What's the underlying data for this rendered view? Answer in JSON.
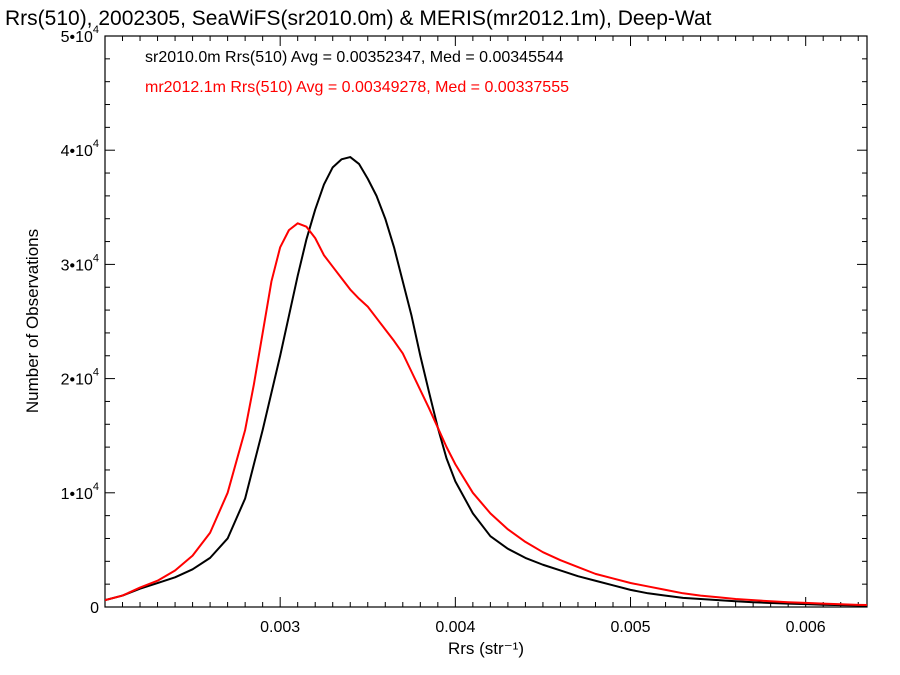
{
  "chart_data": {
    "type": "line",
    "title": "Rrs(510), 2002305, SeaWiFS(sr2010.0m) & MERIS(mr2012.1m), Deep-Wat",
    "xlabel": "Rrs (str⁻¹)",
    "ylabel": "Number of Observations",
    "xlim": [
      0.002,
      0.00635
    ],
    "ylim": [
      0,
      50000
    ],
    "grid": false,
    "legend_position": "top-left",
    "x_ticks": [
      {
        "value": 0.003,
        "label": "0.003"
      },
      {
        "value": 0.004,
        "label": "0.004"
      },
      {
        "value": 0.005,
        "label": "0.005"
      },
      {
        "value": 0.006,
        "label": "0.006"
      }
    ],
    "y_ticks": [
      {
        "value": 0,
        "label": "0"
      },
      {
        "value": 10000,
        "base": "1•10",
        "exp": "4"
      },
      {
        "value": 20000,
        "base": "2•10",
        "exp": "4"
      },
      {
        "value": 30000,
        "base": "3•10",
        "exp": "4"
      },
      {
        "value": 40000,
        "base": "4•10",
        "exp": "4"
      },
      {
        "value": 50000,
        "base": "5•10",
        "exp": "4"
      }
    ],
    "annotations": [
      {
        "text": "sr2010.0m Rrs(510) Avg = 0.00352347, Med = 0.00345544",
        "color": "#000000"
      },
      {
        "text": "mr2012.1m Rrs(510) Avg = 0.00349278, Med = 0.00337555",
        "color": "#ff0000"
      }
    ],
    "series": [
      {
        "color": "#000000",
        "points": [
          [
            0.002,
            600
          ],
          [
            0.0021,
            1000
          ],
          [
            0.0022,
            1600
          ],
          [
            0.0023,
            2100
          ],
          [
            0.0024,
            2600
          ],
          [
            0.0025,
            3300
          ],
          [
            0.0026,
            4300
          ],
          [
            0.0027,
            6000
          ],
          [
            0.0028,
            9500
          ],
          [
            0.0029,
            15500
          ],
          [
            0.003,
            22000
          ],
          [
            0.00305,
            25500
          ],
          [
            0.0031,
            29000
          ],
          [
            0.00315,
            32200
          ],
          [
            0.0032,
            34800
          ],
          [
            0.00325,
            37000
          ],
          [
            0.0033,
            38500
          ],
          [
            0.00335,
            39200
          ],
          [
            0.0034,
            39400
          ],
          [
            0.00345,
            38800
          ],
          [
            0.0035,
            37500
          ],
          [
            0.00355,
            36000
          ],
          [
            0.0036,
            34000
          ],
          [
            0.00365,
            31500
          ],
          [
            0.0037,
            28500
          ],
          [
            0.00375,
            25500
          ],
          [
            0.0038,
            22000
          ],
          [
            0.00385,
            18800
          ],
          [
            0.0039,
            15700
          ],
          [
            0.00395,
            13000
          ],
          [
            0.004,
            11000
          ],
          [
            0.0041,
            8200
          ],
          [
            0.0042,
            6200
          ],
          [
            0.0043,
            5100
          ],
          [
            0.0044,
            4300
          ],
          [
            0.0045,
            3700
          ],
          [
            0.0046,
            3200
          ],
          [
            0.0047,
            2700
          ],
          [
            0.0048,
            2300
          ],
          [
            0.0049,
            1900
          ],
          [
            0.005,
            1500
          ],
          [
            0.0051,
            1200
          ],
          [
            0.0052,
            1000
          ],
          [
            0.0053,
            800
          ],
          [
            0.0054,
            700
          ],
          [
            0.0055,
            600
          ],
          [
            0.0056,
            500
          ],
          [
            0.0057,
            420
          ],
          [
            0.0058,
            350
          ],
          [
            0.0059,
            300
          ],
          [
            0.006,
            250
          ],
          [
            0.0061,
            200
          ],
          [
            0.0062,
            160
          ],
          [
            0.0063,
            130
          ],
          [
            0.00635,
            120
          ]
        ]
      },
      {
        "color": "#ff0000",
        "points": [
          [
            0.002,
            600
          ],
          [
            0.0021,
            1000
          ],
          [
            0.0022,
            1700
          ],
          [
            0.0023,
            2300
          ],
          [
            0.0024,
            3200
          ],
          [
            0.0025,
            4500
          ],
          [
            0.0026,
            6500
          ],
          [
            0.0027,
            10000
          ],
          [
            0.0028,
            15500
          ],
          [
            0.00285,
            19500
          ],
          [
            0.0029,
            24000
          ],
          [
            0.00295,
            28500
          ],
          [
            0.003,
            31500
          ],
          [
            0.00305,
            33000
          ],
          [
            0.0031,
            33600
          ],
          [
            0.00315,
            33300
          ],
          [
            0.0032,
            32300
          ],
          [
            0.00325,
            30800
          ],
          [
            0.0033,
            29800
          ],
          [
            0.00335,
            28800
          ],
          [
            0.0034,
            27800
          ],
          [
            0.00345,
            27000
          ],
          [
            0.0035,
            26300
          ],
          [
            0.00355,
            25300
          ],
          [
            0.0036,
            24300
          ],
          [
            0.00365,
            23300
          ],
          [
            0.0037,
            22200
          ],
          [
            0.00375,
            20600
          ],
          [
            0.0038,
            19000
          ],
          [
            0.00385,
            17400
          ],
          [
            0.0039,
            15700
          ],
          [
            0.00395,
            14000
          ],
          [
            0.004,
            12500
          ],
          [
            0.0041,
            10000
          ],
          [
            0.0042,
            8200
          ],
          [
            0.0043,
            6800
          ],
          [
            0.0044,
            5700
          ],
          [
            0.0045,
            4800
          ],
          [
            0.0046,
            4100
          ],
          [
            0.0047,
            3500
          ],
          [
            0.0048,
            2900
          ],
          [
            0.0049,
            2500
          ],
          [
            0.005,
            2100
          ],
          [
            0.0051,
            1800
          ],
          [
            0.0052,
            1500
          ],
          [
            0.0053,
            1200
          ],
          [
            0.0054,
            1000
          ],
          [
            0.0055,
            850
          ],
          [
            0.0056,
            700
          ],
          [
            0.0057,
            600
          ],
          [
            0.0058,
            500
          ],
          [
            0.0059,
            420
          ],
          [
            0.006,
            360
          ],
          [
            0.0061,
            300
          ],
          [
            0.0062,
            240
          ],
          [
            0.0063,
            190
          ],
          [
            0.00635,
            170
          ]
        ]
      }
    ]
  }
}
